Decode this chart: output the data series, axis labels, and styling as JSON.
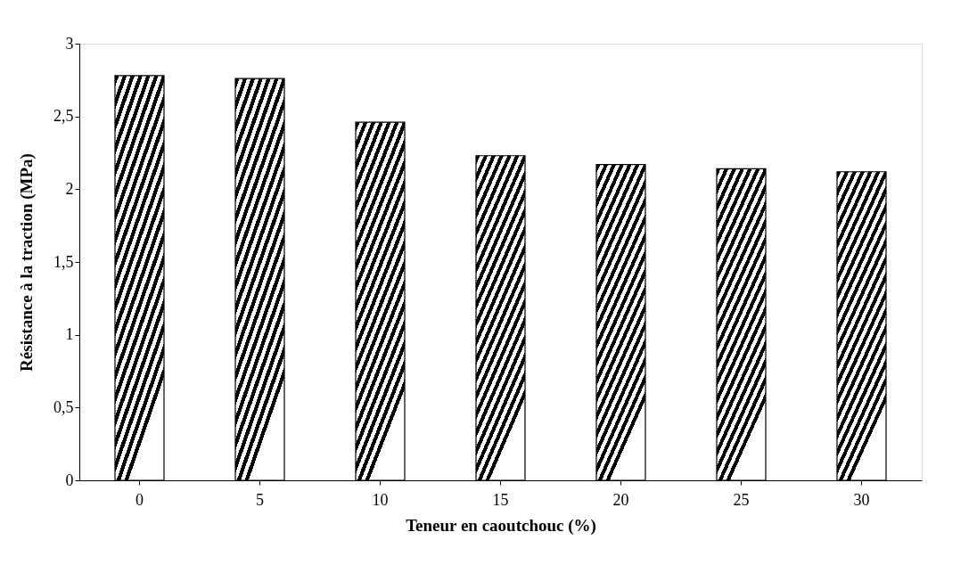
{
  "chart_data": {
    "type": "bar",
    "xlabel": "Teneur en caoutchouc     (%)",
    "ylabel": "Résistance à la traction     (MPa)",
    "categories": [
      "0",
      "5",
      "10",
      "15",
      "20",
      "25",
      "30"
    ],
    "values": [
      2.78,
      2.76,
      2.46,
      2.23,
      2.17,
      2.14,
      2.12
    ],
    "color": "#000000",
    "ylim": [
      0,
      3
    ],
    "yticks": [
      0,
      {
        "value": 0.5,
        "label": "0,5"
      },
      1,
      {
        "value": 1.5,
        "label": "1,5"
      },
      2,
      {
        "value": 2.5,
        "label": "2,5"
      },
      3
    ],
    "grid": false
  }
}
